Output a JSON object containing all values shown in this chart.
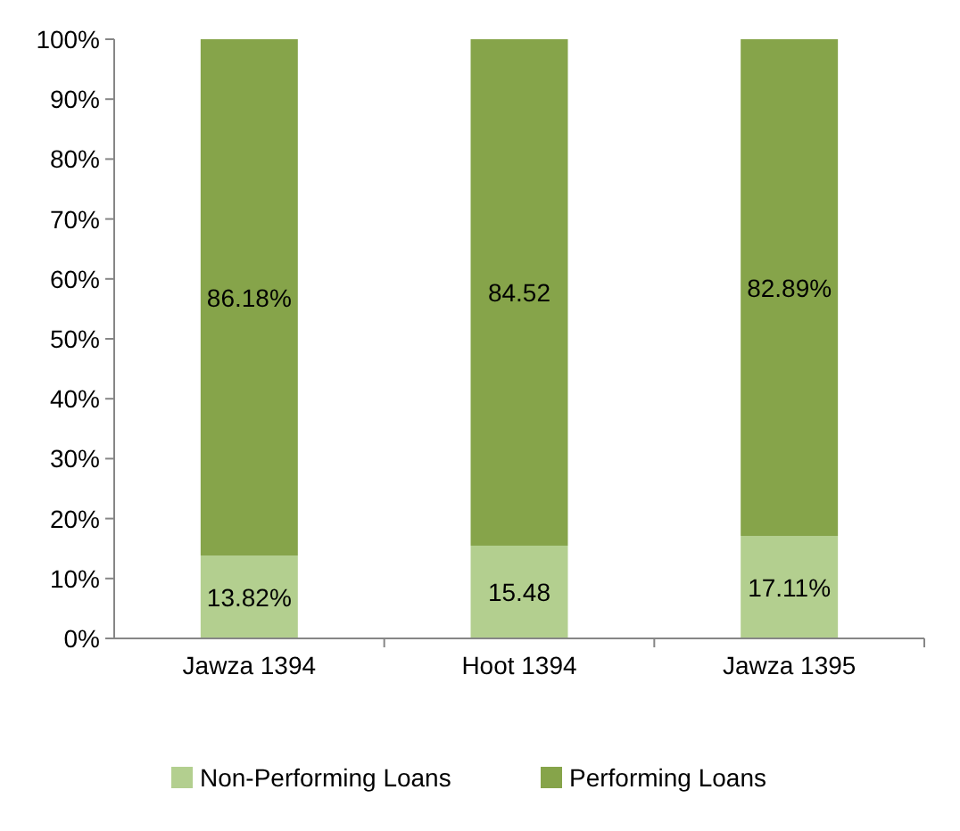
{
  "chart_data": {
    "type": "bar",
    "stacked": true,
    "categories": [
      "Jawza 1394",
      "Hoot 1394",
      "Jawza 1395"
    ],
    "series": [
      {
        "name": "Non-Performing Loans",
        "color": "#b3cf8f",
        "values": [
          13.82,
          15.48,
          17.11
        ],
        "value_labels": [
          "13.82%",
          "15.48",
          "17.11%"
        ]
      },
      {
        "name": "Performing Loans",
        "color": "#86a44a",
        "values": [
          86.18,
          84.52,
          82.89
        ],
        "value_labels": [
          "86.18%",
          "84.52",
          "82.89%"
        ]
      }
    ],
    "ylim": [
      0,
      100
    ],
    "yticks": [
      {
        "value": 0,
        "label": "0%"
      },
      {
        "value": 10,
        "label": "10%"
      },
      {
        "value": 20,
        "label": "20%"
      },
      {
        "value": 30,
        "label": "30%"
      },
      {
        "value": 40,
        "label": "40%"
      },
      {
        "value": 50,
        "label": "50%"
      },
      {
        "value": 60,
        "label": "60%"
      },
      {
        "value": 70,
        "label": "70%"
      },
      {
        "value": 80,
        "label": "80%"
      },
      {
        "value": 90,
        "label": "90%"
      },
      {
        "value": 100,
        "label": "100%"
      }
    ],
    "grid": false,
    "legend": "bottom"
  }
}
